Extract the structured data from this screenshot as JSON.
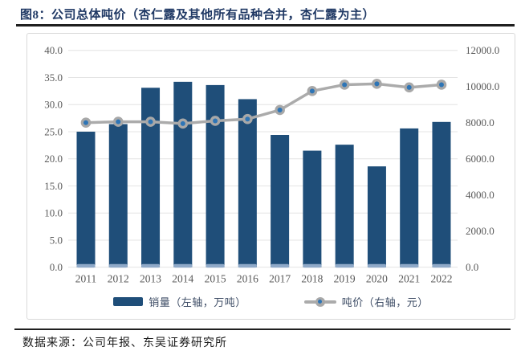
{
  "figure": {
    "title": "图8：公司总体吨价（杏仁露及其他所有品种合并，杏仁露为主）",
    "source": "数据来源：公司年报、东吴证券研究所"
  },
  "chart_data": {
    "type": "bar",
    "subtype": "bar-line-combo",
    "title": "公司总体吨价（杏仁露及其他所有品种合并，杏仁露为主）",
    "categories": [
      "2011",
      "2012",
      "2013",
      "2014",
      "2015",
      "2016",
      "2017",
      "2018",
      "2019",
      "2020",
      "2021",
      "2022"
    ],
    "series": [
      {
        "name": "销量（左轴，万吨）",
        "type": "bar",
        "axis": "left",
        "values": [
          25.0,
          26.4,
          33.1,
          34.2,
          33.6,
          31.0,
          24.4,
          21.5,
          22.6,
          18.6,
          25.6,
          26.8
        ]
      },
      {
        "name": "吨价（右轴，元）",
        "type": "line",
        "axis": "right",
        "values": [
          8000,
          8050,
          8050,
          7950,
          8100,
          8200,
          8700,
          9750,
          10100,
          10150,
          9950,
          10100
        ]
      }
    ],
    "left_axis": {
      "min": 0,
      "max": 40,
      "step": 5,
      "tick_labels": [
        "0.0",
        "5.0",
        "10.0",
        "15.0",
        "20.0",
        "25.0",
        "30.0",
        "35.0",
        "40.0"
      ]
    },
    "right_axis": {
      "min": 0,
      "max": 12000,
      "step": 2000,
      "tick_labels": [
        "0.0",
        "2000.0",
        "4000.0",
        "6000.0",
        "8000.0",
        "10000.0",
        "12000.0"
      ]
    },
    "grid": true,
    "legend_position": "bottom",
    "colors": {
      "bar": "#1F4E79",
      "bar_base_cap": "#8FA9C8",
      "line": "#ABABAB",
      "marker_outer": "#A8A8A8",
      "marker_inner": "#2E75B6",
      "gridline": "#E4E4E4",
      "axis_text": "#595959",
      "box_border": "#D9D9D9",
      "title_text": "#1F3864"
    }
  }
}
